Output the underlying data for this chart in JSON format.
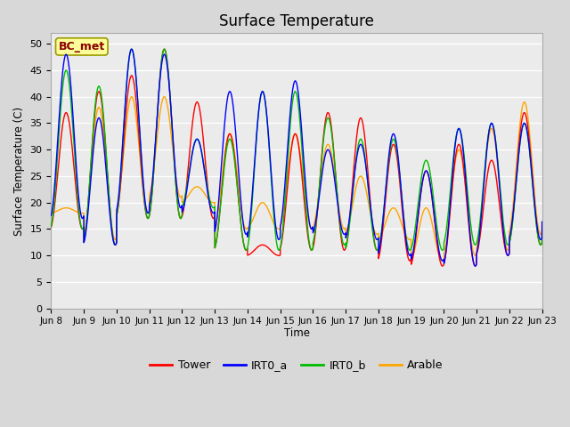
{
  "title": "Surface Temperature",
  "ylabel": "Surface Temperature (C)",
  "xlabel": "Time",
  "ylim": [
    0,
    52
  ],
  "yticks": [
    0,
    5,
    10,
    15,
    20,
    25,
    30,
    35,
    40,
    45,
    50
  ],
  "xtick_labels": [
    "Jun 8",
    "Jun 9",
    "Jun 10",
    "Jun 11",
    "Jun 12",
    "Jun 13",
    "Jun 14",
    "Jun 15",
    "Jun 16",
    "Jun 17",
    "Jun 18",
    "Jun 19",
    "Jun 20",
    "Jun 21",
    "Jun 22",
    "Jun 23"
  ],
  "xtick_positions": [
    0,
    24,
    48,
    72,
    96,
    120,
    144,
    168,
    192,
    216,
    240,
    264,
    288,
    312,
    336,
    360
  ],
  "series_colors": {
    "Tower": "#ff0000",
    "IRT0_a": "#0000ff",
    "IRT0_b": "#00bb00",
    "Arable": "#ffa500"
  },
  "legend_label": "BC_met",
  "fig_bg_color": "#d8d8d8",
  "plot_bg_color": "#ebebeb",
  "annotation_bg": "#ffff99",
  "annotation_text_color": "#8b0000",
  "tower_peaks": [
    37,
    41,
    44,
    49,
    39,
    33,
    12,
    33,
    37,
    36,
    31,
    26,
    31,
    28,
    37,
    37
  ],
  "tower_mins": [
    15,
    12,
    17,
    17,
    17,
    11,
    10,
    11,
    11,
    11,
    9,
    8,
    8,
    10,
    12,
    15
  ],
  "irt0a_peaks": [
    48,
    36,
    49,
    48,
    32,
    41,
    41,
    43,
    30,
    31,
    33,
    26,
    34,
    35,
    35,
    36
  ],
  "irt0a_mins": [
    17,
    12,
    18,
    19,
    18,
    14,
    13,
    15,
    14,
    13,
    10,
    9,
    8,
    10,
    13,
    16
  ],
  "irt0b_peaks": [
    45,
    42,
    49,
    49,
    32,
    32,
    41,
    41,
    36,
    32,
    32,
    28,
    34,
    35,
    35,
    36
  ],
  "irt0b_mins": [
    15,
    12,
    17,
    17,
    19,
    11,
    11,
    11,
    12,
    11,
    11,
    11,
    12,
    12,
    12,
    14
  ],
  "arable_peaks": [
    19,
    38,
    40,
    40,
    23,
    33,
    20,
    33,
    31,
    25,
    19,
    19,
    30,
    34,
    39,
    39
  ],
  "arable_mins": [
    18,
    13,
    18,
    21,
    20,
    15,
    15,
    15,
    15,
    14,
    13,
    9,
    10,
    11,
    14,
    16
  ]
}
